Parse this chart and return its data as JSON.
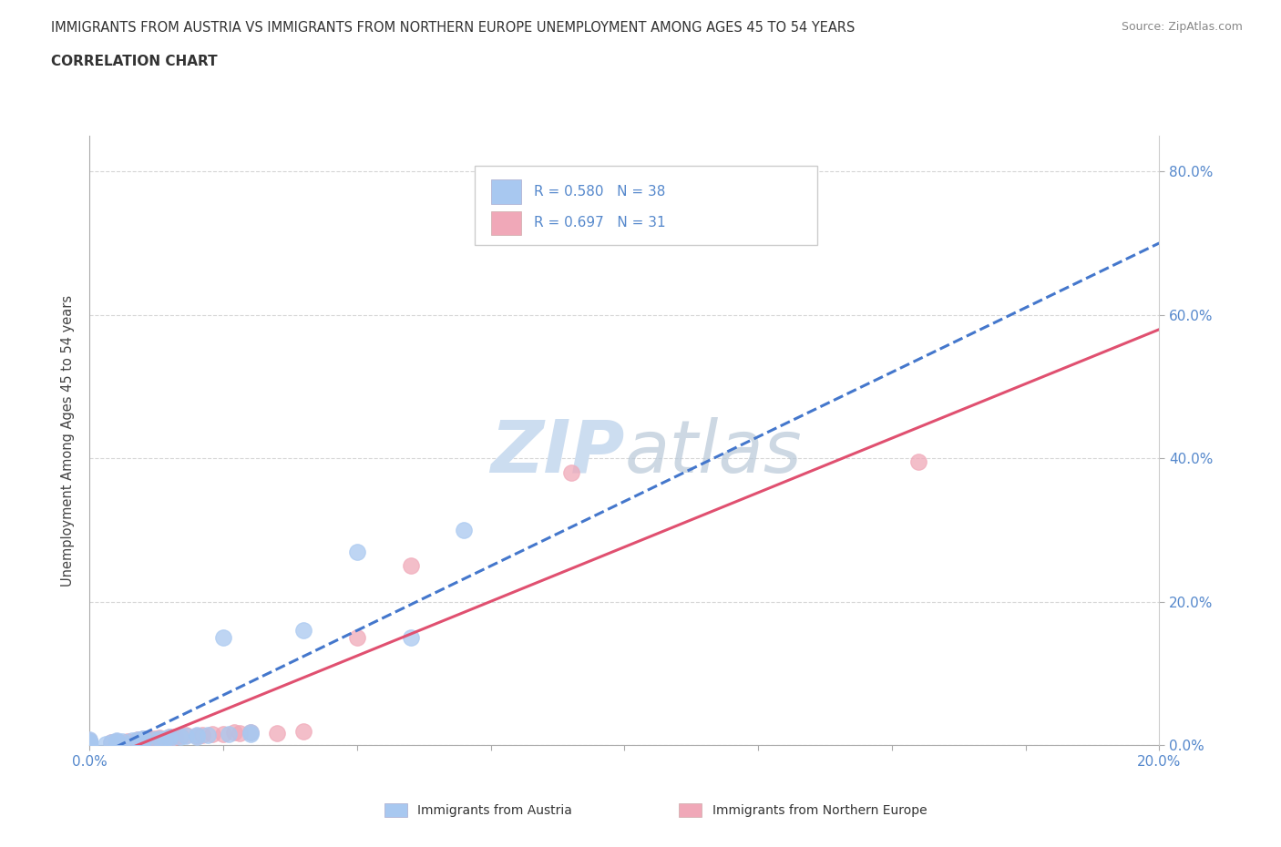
{
  "title_line1": "IMMIGRANTS FROM AUSTRIA VS IMMIGRANTS FROM NORTHERN EUROPE UNEMPLOYMENT AMONG AGES 45 TO 54 YEARS",
  "title_line2": "CORRELATION CHART",
  "source": "Source: ZipAtlas.com",
  "ylabel": "Unemployment Among Ages 45 to 54 years",
  "xlim": [
    0.0,
    0.2
  ],
  "ylim": [
    0.0,
    0.85
  ],
  "ytick_vals": [
    0.0,
    0.2,
    0.4,
    0.6,
    0.8
  ],
  "xtick_positions": [
    0.0,
    0.025,
    0.05,
    0.075,
    0.1,
    0.125,
    0.15,
    0.175,
    0.2
  ],
  "austria_R": 0.58,
  "austria_N": 38,
  "northern_R": 0.697,
  "northern_N": 31,
  "austria_color": "#a8c8f0",
  "northern_color": "#f0a8b8",
  "austria_line_color": "#4477cc",
  "northern_line_color": "#e05070",
  "background_color": "#ffffff",
  "grid_color": "#cccccc",
  "text_blue": "#5588cc",
  "watermark_color": "#ccddf0",
  "austria_x": [
    0.0,
    0.0,
    0.0,
    0.0,
    0.0,
    0.0,
    0.0,
    0.0,
    0.0,
    0.0,
    0.003,
    0.004,
    0.005,
    0.005,
    0.006,
    0.008,
    0.009,
    0.01,
    0.01,
    0.01,
    0.012,
    0.013,
    0.014,
    0.015,
    0.015,
    0.017,
    0.018,
    0.02,
    0.02,
    0.022,
    0.025,
    0.026,
    0.03,
    0.03,
    0.04,
    0.05,
    0.06,
    0.07
  ],
  "austria_y": [
    0.0,
    0.0,
    0.0,
    0.0,
    0.002,
    0.003,
    0.004,
    0.005,
    0.006,
    0.008,
    0.002,
    0.004,
    0.005,
    0.007,
    0.006,
    0.007,
    0.008,
    0.006,
    0.009,
    0.01,
    0.008,
    0.01,
    0.009,
    0.01,
    0.012,
    0.012,
    0.013,
    0.012,
    0.015,
    0.014,
    0.15,
    0.016,
    0.016,
    0.018,
    0.16,
    0.27,
    0.15,
    0.3
  ],
  "northern_x": [
    0.0,
    0.0,
    0.0,
    0.0,
    0.0,
    0.004,
    0.005,
    0.007,
    0.009,
    0.01,
    0.011,
    0.012,
    0.013,
    0.015,
    0.015,
    0.016,
    0.017,
    0.018,
    0.02,
    0.021,
    0.023,
    0.025,
    0.027,
    0.028,
    0.03,
    0.035,
    0.04,
    0.05,
    0.06,
    0.09,
    0.155
  ],
  "northern_y": [
    0.0,
    0.0,
    0.003,
    0.005,
    0.007,
    0.004,
    0.006,
    0.005,
    0.008,
    0.009,
    0.009,
    0.01,
    0.011,
    0.009,
    0.012,
    0.012,
    0.013,
    0.014,
    0.013,
    0.015,
    0.016,
    0.016,
    0.018,
    0.017,
    0.018,
    0.017,
    0.02,
    0.15,
    0.25,
    0.38,
    0.395
  ]
}
